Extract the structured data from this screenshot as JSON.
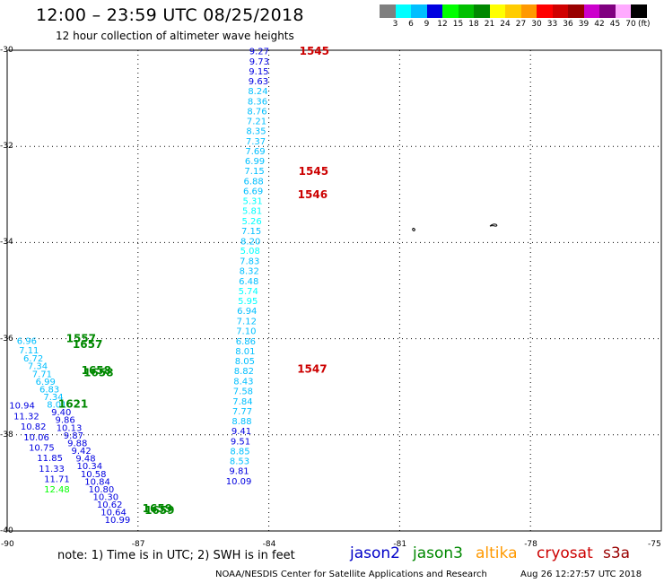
{
  "header": {
    "title": "12:00 – 23:59 UTC 08/25/2018",
    "subtitle": "12 hour collection of altimeter wave heights"
  },
  "colorbar": {
    "colors": [
      "#7f7f7f",
      "#00ffff",
      "#00bfff",
      "#0000e0",
      "#00ff00",
      "#00c000",
      "#008800",
      "#ffff00",
      "#ffcc00",
      "#ff9900",
      "#ff0000",
      "#d00000",
      "#990000",
      "#cc00cc",
      "#800080",
      "#ffaaff",
      "#000000"
    ],
    "labels": [
      "3",
      "6",
      "9",
      "12",
      "15",
      "18",
      "21",
      "24",
      "27",
      "30",
      "33",
      "36",
      "39",
      "42",
      "45",
      "70"
    ],
    "unit": "(ft)"
  },
  "footer": {
    "note": "note:  1) Time is in UTC;  2) SWH is in feet",
    "legend": [
      {
        "name": "jason2",
        "color": "#0000c8"
      },
      {
        "name": "jason3",
        "color": "#008800"
      },
      {
        "name": "altika",
        "color": "#ff9900"
      },
      {
        "name": "cryosat",
        "color": "#cc0000"
      },
      {
        "name": "s3a",
        "color": "#990000"
      }
    ],
    "credit": "NOAA/NESDIS Center for Satellite Applications and Research",
    "timestamp": "Aug 26 12:27:57 UTC 2018"
  },
  "chart_data": {
    "type": "scatter",
    "title": "12:00 – 23:59 UTC 08/25/2018",
    "subtitle": "12 hour collection of altimeter wave heights",
    "xlim": [
      -90,
      -75
    ],
    "ylim": [
      -40,
      -30
    ],
    "xticks": [
      "-90",
      "-87",
      "-84",
      "-81",
      "-78",
      "-75"
    ],
    "yticks": [
      "-30",
      "-32",
      "-34",
      "-36",
      "-38",
      "-40"
    ],
    "grid": true,
    "series": [
      {
        "name": "jason2",
        "points": [
          {
            "x": -84.22,
            "y": -30.03,
            "v": "9.27"
          },
          {
            "x": -84.22,
            "y": -30.24,
            "v": "9.73"
          },
          {
            "x": -84.23,
            "y": -30.45,
            "v": "9.15"
          },
          {
            "x": -84.24,
            "y": -30.65,
            "v": "9.63"
          },
          {
            "x": -84.25,
            "y": -30.86,
            "v": "8.24"
          },
          {
            "x": -84.26,
            "y": -31.07,
            "v": "8.36"
          },
          {
            "x": -84.27,
            "y": -31.28,
            "v": "8.76"
          },
          {
            "x": -84.28,
            "y": -31.48,
            "v": "7.21"
          },
          {
            "x": -84.29,
            "y": -31.69,
            "v": "8.35"
          },
          {
            "x": -84.3,
            "y": -31.9,
            "v": "7.37"
          },
          {
            "x": -84.31,
            "y": -32.11,
            "v": "7.69"
          },
          {
            "x": -84.32,
            "y": -32.31,
            "v": "6.99"
          },
          {
            "x": -84.33,
            "y": -32.52,
            "v": "7.15"
          },
          {
            "x": -84.35,
            "y": -32.73,
            "v": "6.88"
          },
          {
            "x": -84.36,
            "y": -32.94,
            "v": "6.69"
          },
          {
            "x": -84.37,
            "y": -33.14,
            "v": "5.31"
          },
          {
            "x": -84.38,
            "y": -33.35,
            "v": "5.81"
          },
          {
            "x": -84.39,
            "y": -33.56,
            "v": "5.26"
          },
          {
            "x": -84.4,
            "y": -33.77,
            "v": "7.15"
          },
          {
            "x": -84.42,
            "y": -33.98,
            "v": "8.20"
          },
          {
            "x": -84.43,
            "y": -34.18,
            "v": "5.08"
          },
          {
            "x": -84.44,
            "y": -34.39,
            "v": "7.83"
          },
          {
            "x": -84.45,
            "y": -34.6,
            "v": "8.32"
          },
          {
            "x": -84.46,
            "y": -34.81,
            "v": "6.48"
          },
          {
            "x": -84.47,
            "y": -35.02,
            "v": "5.74"
          },
          {
            "x": -84.48,
            "y": -35.22,
            "v": "5.95"
          },
          {
            "x": -84.5,
            "y": -35.43,
            "v": "6.94"
          },
          {
            "x": -84.51,
            "y": -35.64,
            "v": "7.12"
          },
          {
            "x": -84.52,
            "y": -35.85,
            "v": "7.10"
          },
          {
            "x": -84.53,
            "y": -36.06,
            "v": "6.86"
          },
          {
            "x": -84.54,
            "y": -36.27,
            "v": "8.01"
          },
          {
            "x": -84.55,
            "y": -36.47,
            "v": "8.05"
          },
          {
            "x": -84.57,
            "y": -36.68,
            "v": "8.82"
          },
          {
            "x": -84.58,
            "y": -36.89,
            "v": "8.43"
          },
          {
            "x": -84.59,
            "y": -37.1,
            "v": "7.58"
          },
          {
            "x": -84.6,
            "y": -37.31,
            "v": "7.84"
          },
          {
            "x": -84.61,
            "y": -37.52,
            "v": "7.77"
          },
          {
            "x": -84.62,
            "y": -37.72,
            "v": "8.88"
          },
          {
            "x": -84.63,
            "y": -37.93,
            "v": "9.41"
          },
          {
            "x": -84.65,
            "y": -38.14,
            "v": "9.51"
          },
          {
            "x": -84.66,
            "y": -38.35,
            "v": "8.85"
          },
          {
            "x": -84.67,
            "y": -38.55,
            "v": "8.53"
          },
          {
            "x": -84.68,
            "y": -38.76,
            "v": "9.81"
          },
          {
            "x": -84.69,
            "y": -38.97,
            "v": "10.09"
          },
          {
            "x": -89.66,
            "y": -37.4,
            "v": "10.94"
          },
          {
            "x": -89.56,
            "y": -37.62,
            "v": "11.32"
          },
          {
            "x": -89.4,
            "y": -37.84,
            "v": "10.82"
          },
          {
            "x": -89.33,
            "y": -38.06,
            "v": "10.06"
          },
          {
            "x": -89.21,
            "y": -38.27,
            "v": "10.75"
          },
          {
            "x": -89.02,
            "y": -38.49,
            "v": "11.85"
          },
          {
            "x": -88.98,
            "y": -38.71,
            "v": "11.33"
          },
          {
            "x": -88.86,
            "y": -38.93,
            "v": "11.71"
          },
          {
            "x": -88.86,
            "y": -39.14,
            "v": "12.48"
          },
          {
            "x": -89.55,
            "y": -36.05,
            "v": "6.96"
          },
          {
            "x": -89.5,
            "y": -36.25,
            "v": "7.11"
          },
          {
            "x": -89.4,
            "y": -36.42,
            "v": "6.72"
          },
          {
            "x": -89.3,
            "y": -36.58,
            "v": "7.34"
          },
          {
            "x": -89.2,
            "y": -36.74,
            "v": "7.71"
          },
          {
            "x": -89.12,
            "y": -36.9,
            "v": "6.99"
          },
          {
            "x": -89.03,
            "y": -37.06,
            "v": "6.83"
          },
          {
            "x": -88.94,
            "y": -37.22,
            "v": "7.34"
          },
          {
            "x": -88.86,
            "y": -37.38,
            "v": "8.01"
          },
          {
            "x": -88.76,
            "y": -37.54,
            "v": "9.40"
          },
          {
            "x": -88.67,
            "y": -37.7,
            "v": "9.86"
          },
          {
            "x": -88.58,
            "y": -37.86,
            "v": "10.13"
          },
          {
            "x": -88.48,
            "y": -38.02,
            "v": "9.87"
          },
          {
            "x": -88.39,
            "y": -38.18,
            "v": "9.88"
          },
          {
            "x": -88.3,
            "y": -38.34,
            "v": "9.42"
          },
          {
            "x": -88.2,
            "y": -38.5,
            "v": "9.48"
          },
          {
            "x": -88.11,
            "y": -38.66,
            "v": "10.34"
          },
          {
            "x": -88.02,
            "y": -38.82,
            "v": "10.58"
          },
          {
            "x": -87.93,
            "y": -38.98,
            "v": "10.84"
          },
          {
            "x": -87.84,
            "y": -39.14,
            "v": "10.80"
          },
          {
            "x": -87.74,
            "y": -39.3,
            "v": "10.30"
          },
          {
            "x": -87.65,
            "y": -39.46,
            "v": "10.62"
          },
          {
            "x": -87.56,
            "y": -39.62,
            "v": "10.64"
          },
          {
            "x": -87.47,
            "y": -39.78,
            "v": "10.99"
          }
        ]
      },
      {
        "name": "jason3",
        "points": [
          {
            "x": -88.65,
            "y": -36.01,
            "t": "1557"
          },
          {
            "x": -88.5,
            "y": -36.13,
            "t": "1657"
          },
          {
            "x": -88.3,
            "y": -36.67,
            "t": "1658"
          },
          {
            "x": -88.25,
            "y": -36.72,
            "t": "1658"
          },
          {
            "x": -88.83,
            "y": -37.37,
            "t": "1621"
          },
          {
            "x": -86.9,
            "y": -39.54,
            "t": "1659"
          },
          {
            "x": -86.85,
            "y": -39.58,
            "t": "1659"
          }
        ]
      },
      {
        "name": "cryosat",
        "points": [
          {
            "x": -83.3,
            "y": -30.03,
            "t": "1545"
          },
          {
            "x": -83.32,
            "y": -32.53,
            "t": "1545"
          },
          {
            "x": -83.34,
            "y": -33.01,
            "t": "1546"
          },
          {
            "x": -83.35,
            "y": -36.64,
            "t": "1547"
          }
        ]
      }
    ]
  }
}
